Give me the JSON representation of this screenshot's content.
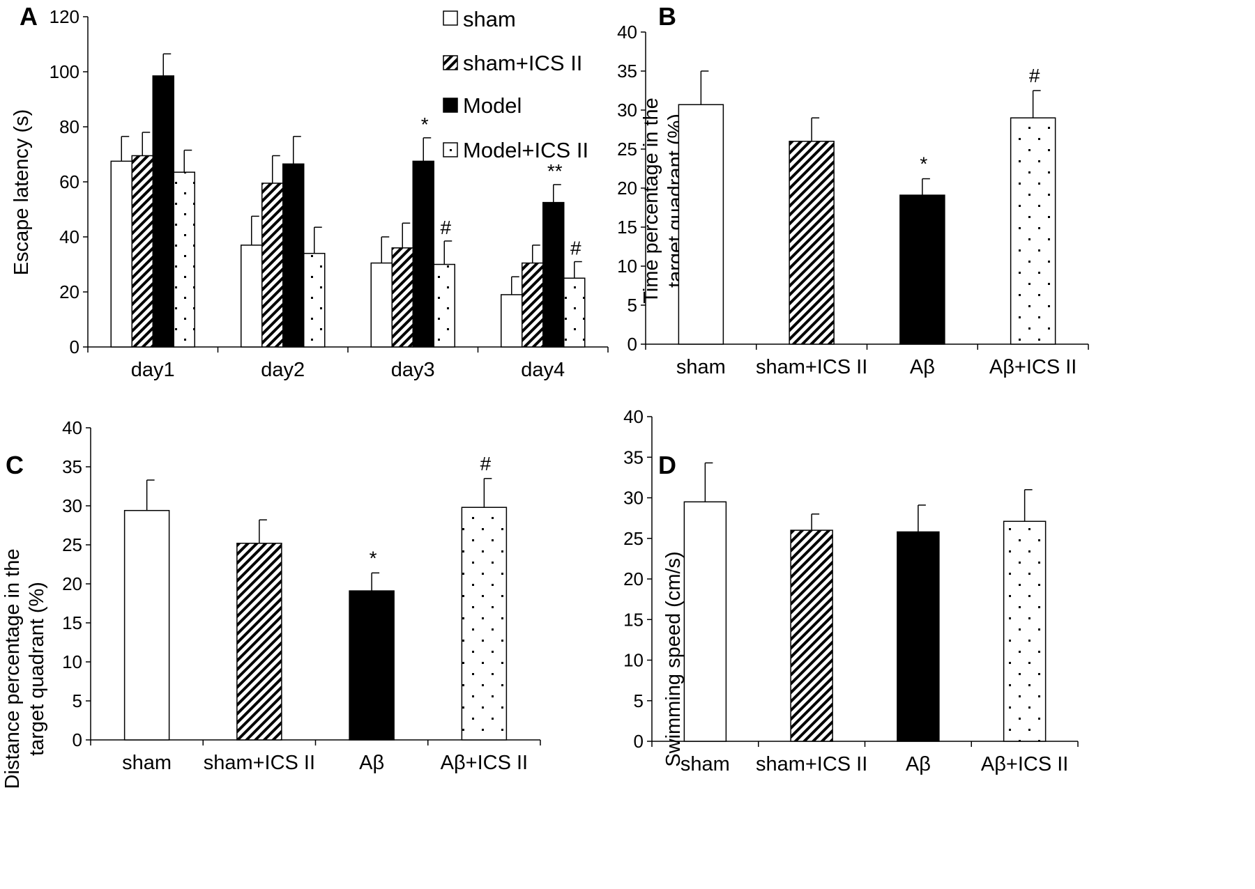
{
  "colors": {
    "ink": "#000000",
    "paper": "#ffffff"
  },
  "legend": {
    "items": [
      {
        "label": "sham",
        "pattern": "white"
      },
      {
        "label": "sham+ICS II",
        "pattern": "hatch"
      },
      {
        "label": "Model",
        "pattern": "black"
      },
      {
        "label": "Model+ICS II",
        "pattern": "dots"
      }
    ]
  },
  "chart_data": [
    {
      "id": "A",
      "panel_label": "A",
      "type": "bar",
      "title": "",
      "xlabel": "",
      "ylabel": "Escape latency (s)",
      "ylim": [
        0,
        120
      ],
      "yticks": [
        0,
        20,
        40,
        60,
        80,
        100,
        120
      ],
      "categories": [
        "day1",
        "day2",
        "day3",
        "day4"
      ],
      "series": [
        {
          "name": "sham",
          "pattern": "white",
          "values": [
            67.5,
            37,
            30.5,
            19
          ],
          "errors": [
            9,
            10.5,
            9.5,
            6.5
          ],
          "annotations": [
            "",
            "",
            "",
            ""
          ]
        },
        {
          "name": "sham+ICS II",
          "pattern": "hatch",
          "values": [
            69.5,
            59.5,
            36,
            30.5
          ],
          "errors": [
            8.5,
            10,
            9,
            6.5
          ],
          "annotations": [
            "",
            "",
            "",
            ""
          ]
        },
        {
          "name": "Model",
          "pattern": "black",
          "values": [
            98.5,
            66.5,
            67.5,
            52.5
          ],
          "errors": [
            8,
            10,
            8.5,
            6.5
          ],
          "annotations": [
            "",
            "",
            "*",
            "**"
          ]
        },
        {
          "name": "Model+ICS II",
          "pattern": "dots",
          "values": [
            63.5,
            34,
            30,
            25
          ],
          "errors": [
            8,
            9.5,
            8.5,
            6
          ],
          "annotations": [
            "",
            "",
            "#",
            "#"
          ]
        }
      ]
    },
    {
      "id": "B",
      "panel_label": "B",
      "type": "bar",
      "title": "",
      "xlabel": "",
      "ylabel": "Time percentage in the target quadrant (%)",
      "ylabel_lines": [
        "Time percentage in the",
        "target quadrant (%)"
      ],
      "ylim": [
        0,
        40
      ],
      "yticks": [
        0,
        5,
        10,
        15,
        20,
        25,
        30,
        35,
        40
      ],
      "categories": [
        "sham",
        "sham+ICS II",
        "Aβ",
        "Aβ+ICS II"
      ],
      "patterns": [
        "white",
        "hatch",
        "black",
        "dots"
      ],
      "values": [
        30.7,
        26.0,
        19.1,
        29.0
      ],
      "errors": [
        4.3,
        3.0,
        2.1,
        3.5
      ],
      "annotations": [
        "",
        "",
        "*",
        "#"
      ]
    },
    {
      "id": "C",
      "panel_label": "C",
      "type": "bar",
      "title": "",
      "xlabel": "",
      "ylabel": "Distance percentage in the target quadrant (%)",
      "ylabel_lines": [
        "Distance percentage in the",
        "target quadrant (%)"
      ],
      "ylim": [
        0,
        40
      ],
      "yticks": [
        0,
        5,
        10,
        15,
        20,
        25,
        30,
        35,
        40
      ],
      "categories": [
        "sham",
        "sham+ICS II",
        "Aβ",
        "Aβ+ICS II"
      ],
      "patterns": [
        "white",
        "hatch",
        "black",
        "dots"
      ],
      "values": [
        29.4,
        25.2,
        19.1,
        29.8
      ],
      "errors": [
        3.9,
        3.0,
        2.3,
        3.7
      ],
      "annotations": [
        "",
        "",
        "*",
        "#"
      ]
    },
    {
      "id": "D",
      "panel_label": "D",
      "type": "bar",
      "title": "",
      "xlabel": "",
      "ylabel": "Swimming speed (cm/s)",
      "ylabel_lines": [
        "Swimming speed (cm/s)"
      ],
      "ylim": [
        0,
        40
      ],
      "yticks": [
        0,
        5,
        10,
        15,
        20,
        25,
        30,
        35,
        40
      ],
      "categories": [
        "sham",
        "sham+ICS II",
        "Aβ",
        "Aβ+ICS II"
      ],
      "patterns": [
        "white",
        "hatch",
        "black",
        "dots"
      ],
      "values": [
        29.5,
        26.0,
        25.8,
        27.1
      ],
      "errors": [
        4.8,
        2.0,
        3.3,
        3.9
      ],
      "annotations": [
        "",
        "",
        "",
        ""
      ]
    }
  ]
}
